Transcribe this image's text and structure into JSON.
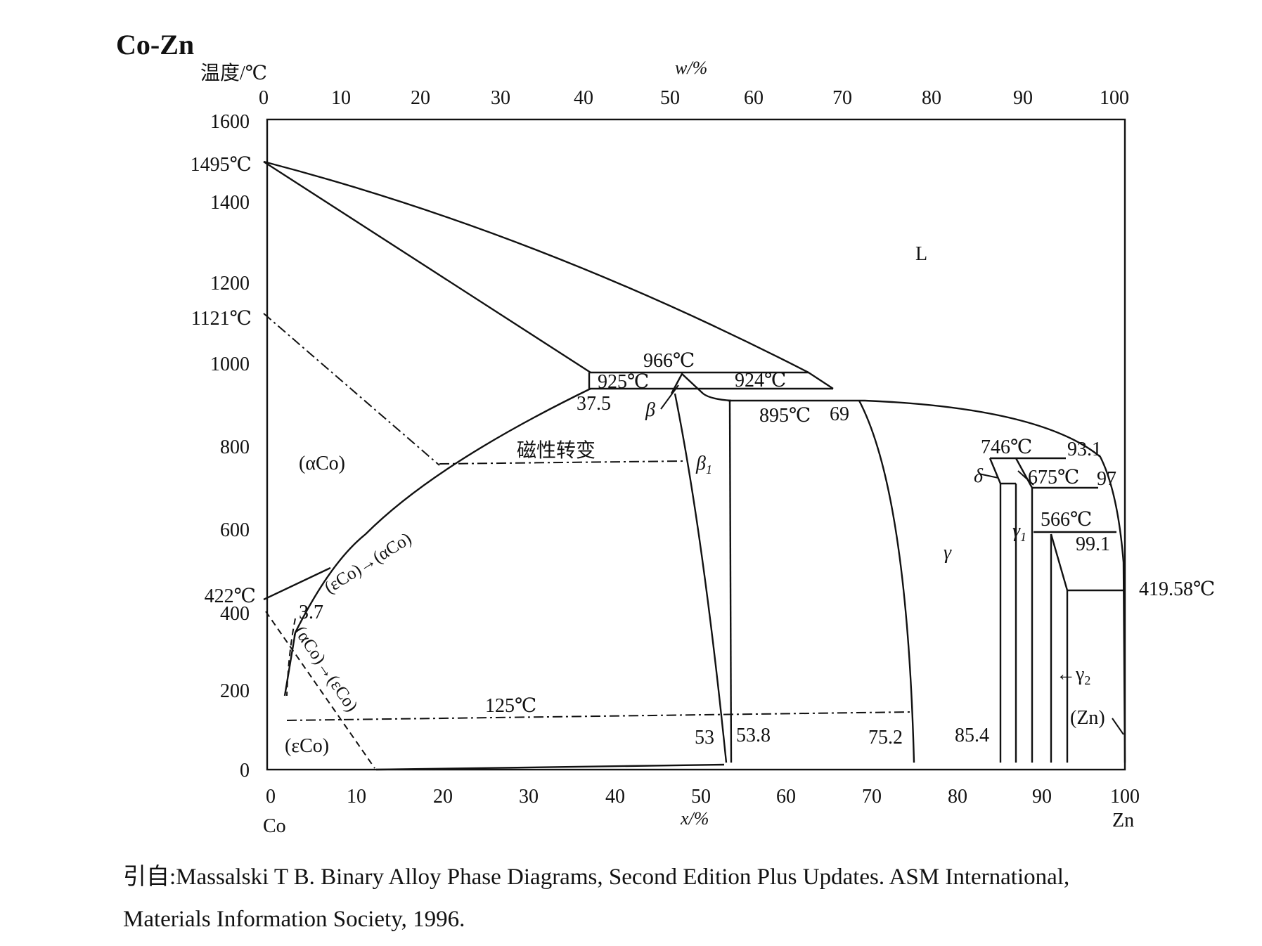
{
  "title": "Co-Zn",
  "y_axis_label": "温度/℃",
  "top_axis_label": "w/%",
  "bottom_axis_label": "x/%",
  "left_element": "Co",
  "right_element": "Zn",
  "source_line1": "引自:Massalski T B. Binary Alloy Phase Diagrams, Second Edition Plus Updates. ASM International,",
  "source_line2": "Materials Information Society, 1996.",
  "y_ticks": [
    "0",
    "200",
    "400",
    "600",
    "800",
    "1000",
    "1200",
    "1400",
    "1600"
  ],
  "x_ticks": [
    "0",
    "10",
    "20",
    "30",
    "40",
    "50",
    "60",
    "70",
    "80",
    "90",
    "100"
  ],
  "w_ticks": [
    "0",
    "10",
    "20",
    "30",
    "40",
    "50",
    "60",
    "70",
    "80",
    "90",
    "100"
  ],
  "special_temps": {
    "t1495": "1495℃",
    "t1121": "1121℃",
    "t422": "422℃",
    "t41958": "419.58℃"
  },
  "labels": {
    "L": "L",
    "alphaCo": "(αCo)",
    "epsCo": "(εCo)",
    "Zn": "(Zn)",
    "beta": "β",
    "beta1": "β",
    "beta1_sub": "1",
    "gamma": "γ",
    "gamma1": "γ",
    "gamma1_sub": "1",
    "gamma2": "←γ",
    "gamma2_sub": "2",
    "delta": "δ",
    "mag": "磁性转变",
    "eps_to_alpha": "(εCo)→(αCo)",
    "alpha_to_eps": "(αCo)→(εCo)",
    "t966": "966℃",
    "t925": "925℃",
    "t924": "924℃",
    "t895": "895℃",
    "t746": "746℃",
    "t675": "675℃",
    "t566": "566℃",
    "t125": "125℃",
    "c375": "37.5",
    "c69": "69",
    "c931": "93.1",
    "c97": "97",
    "c991": "99.1",
    "c37": "3.7",
    "c53": "53",
    "c538": "53.8",
    "c752": "75.2",
    "c854": "85.4"
  },
  "colors": {
    "line": "#111111",
    "background": "#ffffff"
  }
}
